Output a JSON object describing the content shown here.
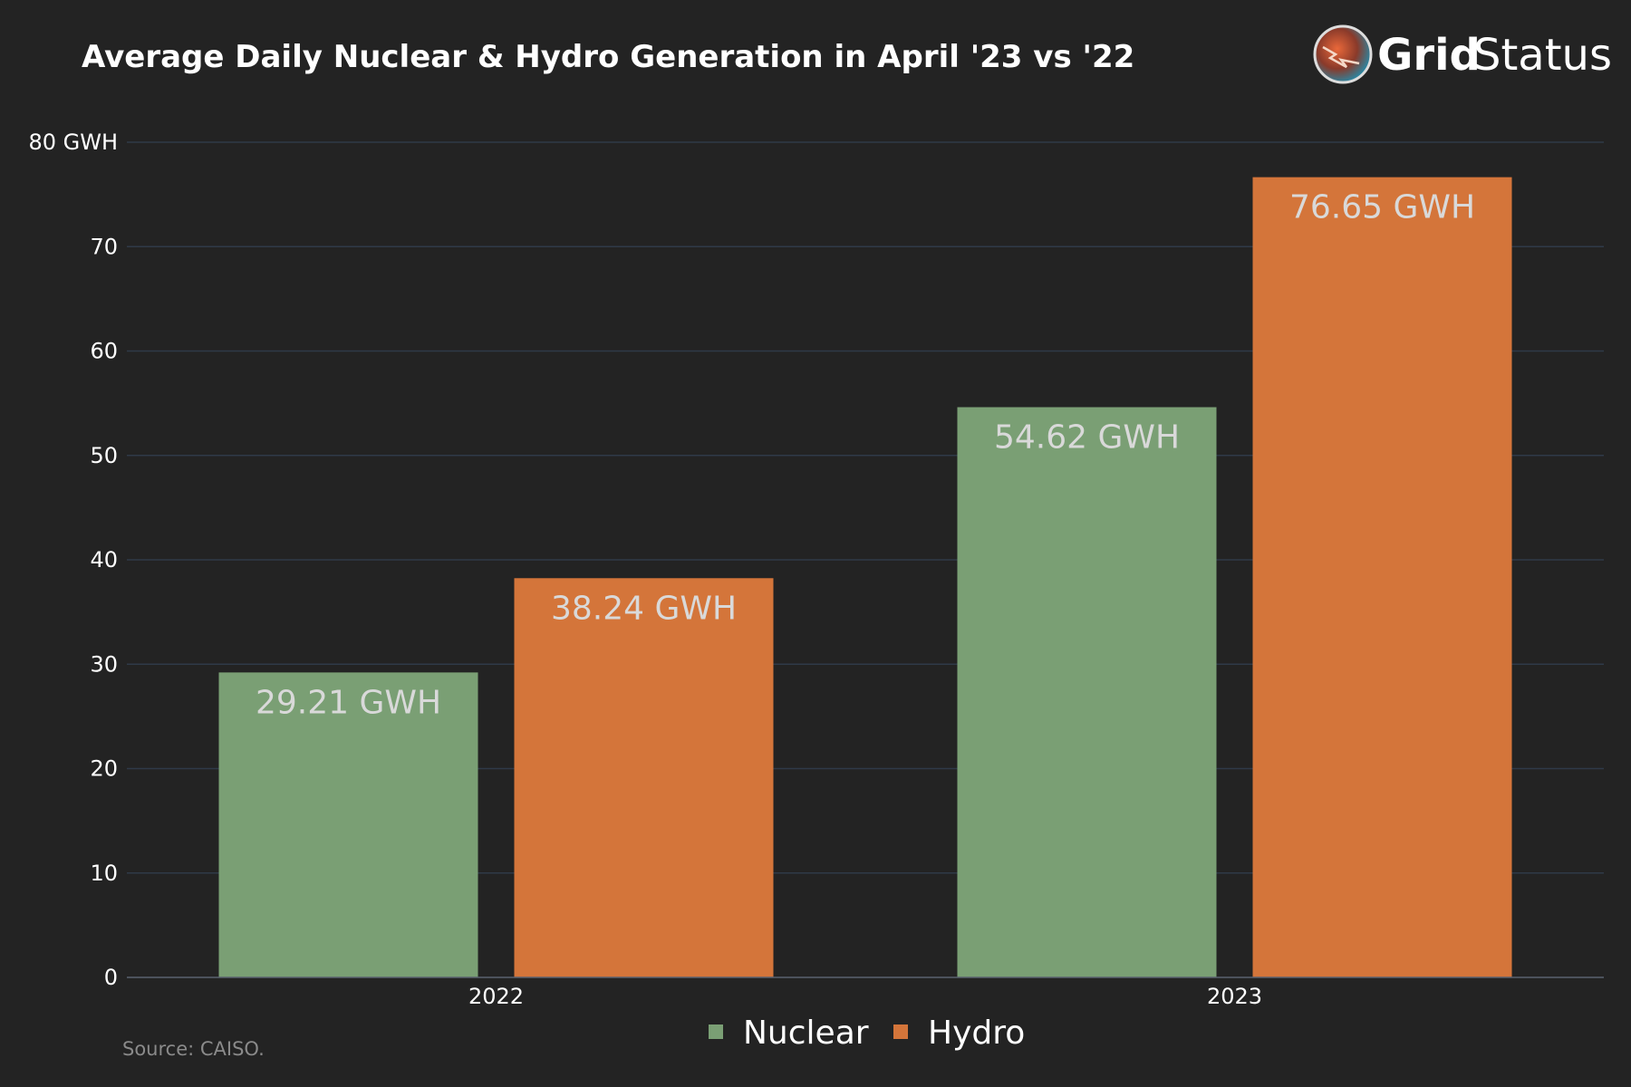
{
  "brand": {
    "name_bold": "Grid",
    "name_light": "Status"
  },
  "source_note": "Source: CAISO.",
  "chart_data": {
    "type": "bar",
    "title": "Average Daily Nuclear & Hydro Generation in April '23 vs '22",
    "categories": [
      "2022",
      "2023"
    ],
    "series": [
      {
        "name": "Nuclear",
        "color": "#7a9f74",
        "values": [
          29.21,
          54.62
        ],
        "labels": [
          "29.21 GWH",
          "54.62 GWH"
        ]
      },
      {
        "name": "Hydro",
        "color": "#d4753a",
        "values": [
          38.24,
          76.65
        ],
        "labels": [
          "38.24 GWH",
          "76.65 GWH"
        ]
      }
    ],
    "ylim": [
      0,
      80
    ],
    "yticks": [
      0,
      10,
      20,
      30,
      40,
      50,
      60,
      70,
      80
    ],
    "ytick_labels": [
      "0",
      "10",
      "20",
      "30",
      "40",
      "50",
      "60",
      "70",
      "80 GWH"
    ],
    "xlabel": "",
    "ylabel": "",
    "grid": true,
    "legend_position": "bottom-center"
  }
}
